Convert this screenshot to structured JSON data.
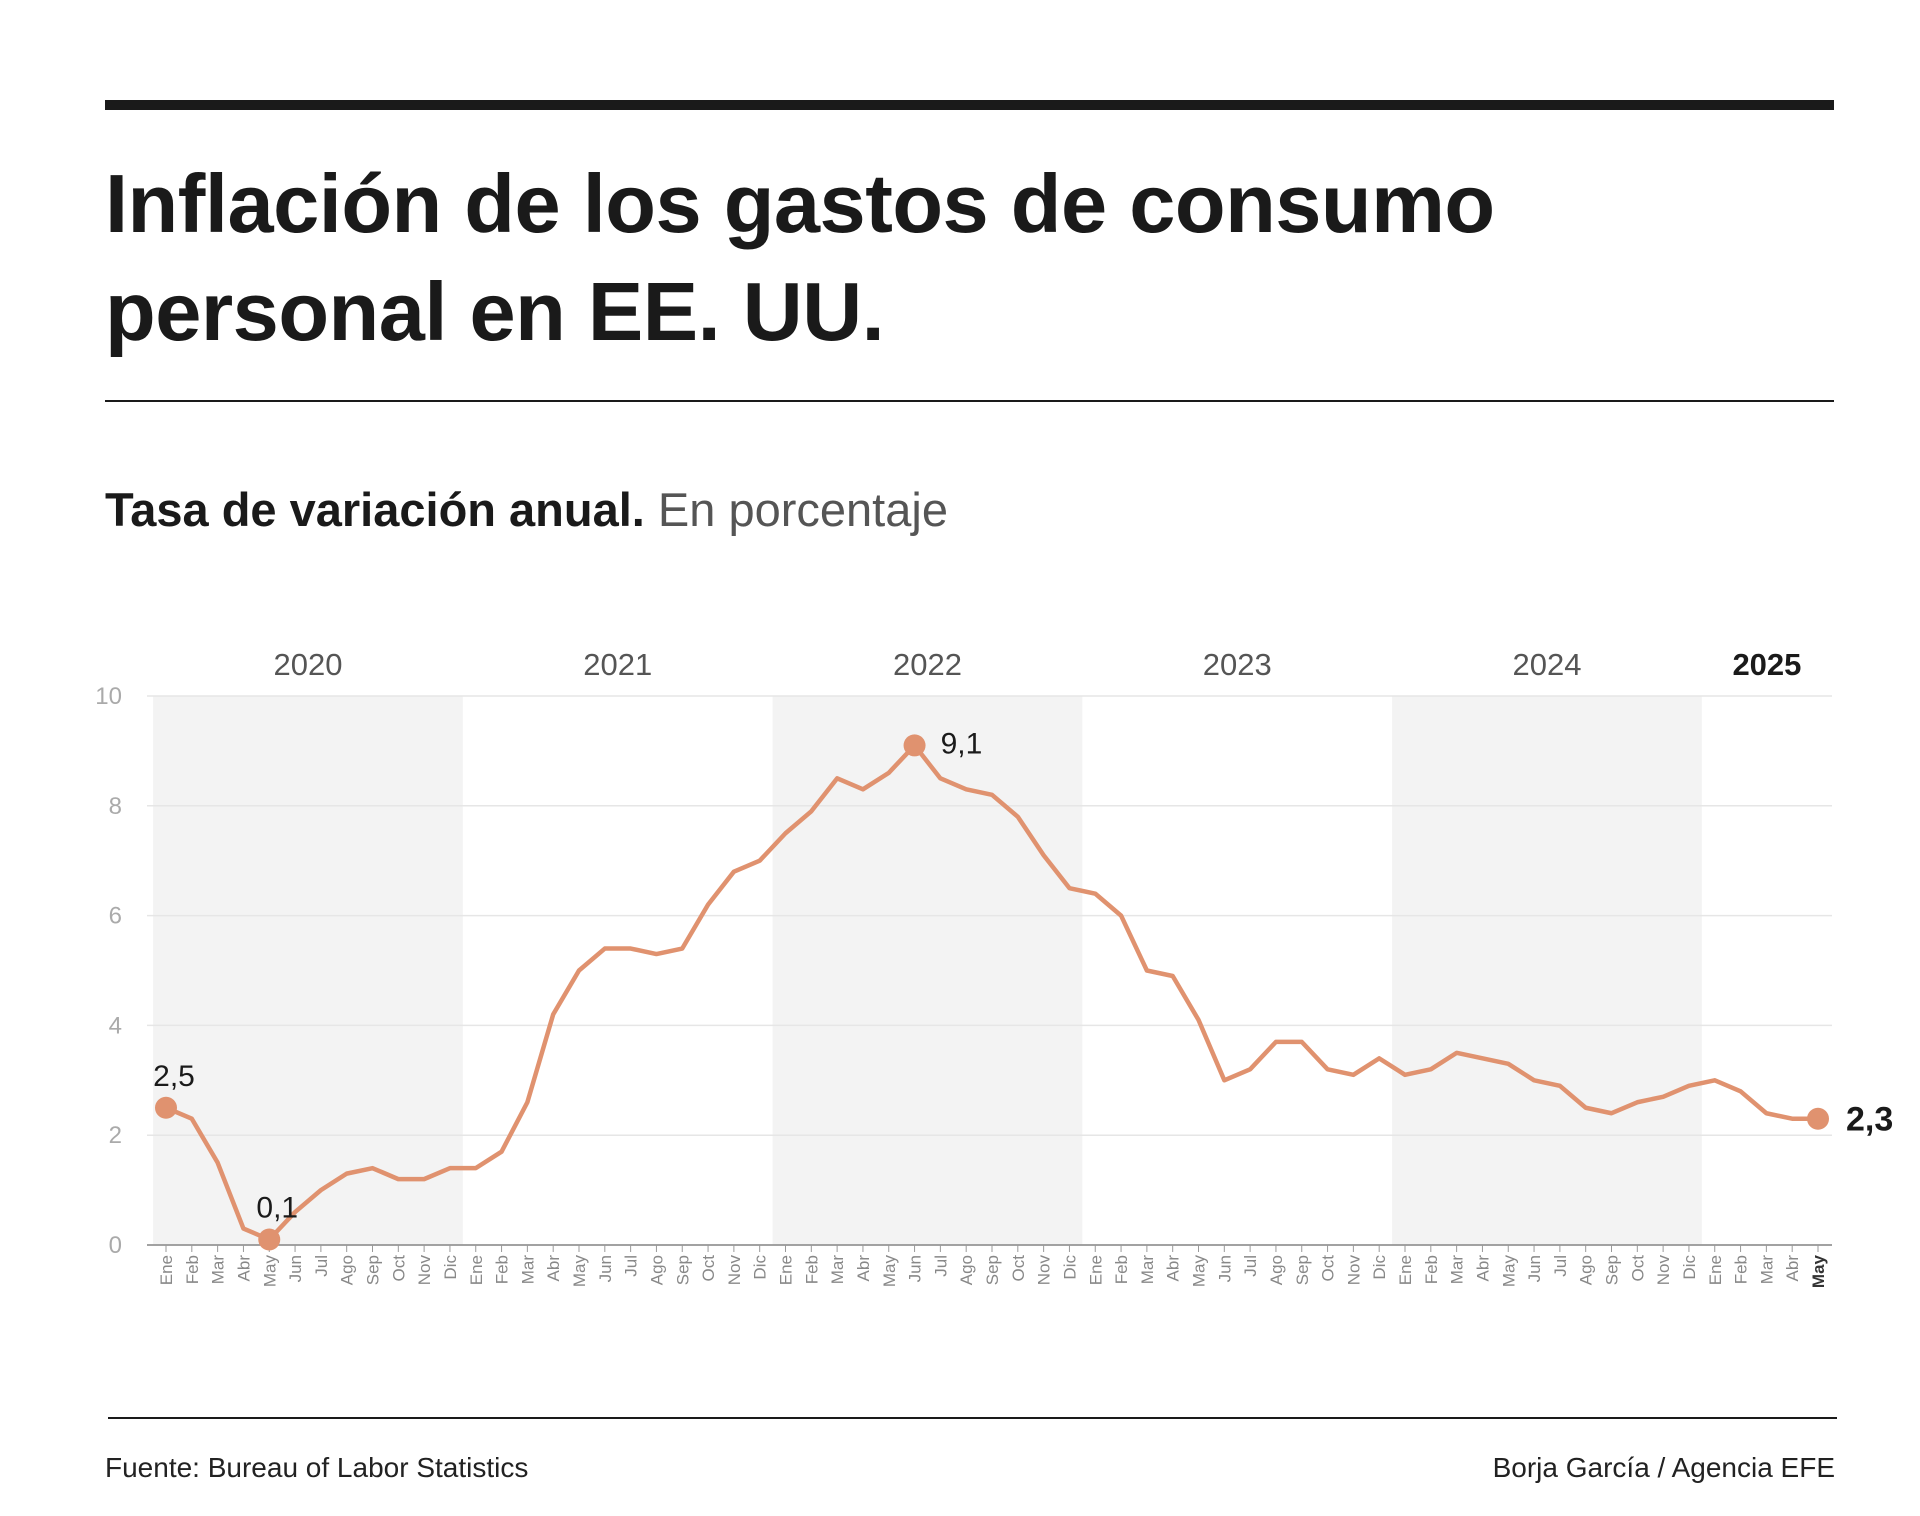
{
  "chart_data": {
    "type": "line",
    "title": "Inflación de los gastos de consumo personal en EE. UU.",
    "subtitle": "Tasa de variación anual.",
    "y_label": "En porcentaje",
    "source": "Fuente: Bureau of Labor Statistics",
    "credit": "Borja García / Agencia EFE",
    "years": [
      "2020",
      "2021",
      "2022",
      "2023",
      "2024",
      "2025"
    ],
    "categories": [
      "Ene",
      "Feb",
      "Mar",
      "Abr",
      "May",
      "Jun",
      "Jul",
      "Ago",
      "Sep",
      "Oct",
      "Nov",
      "Dic",
      "Ene",
      "Feb",
      "Mar",
      "Abr",
      "May",
      "Jun",
      "Jul",
      "Ago",
      "Sep",
      "Oct",
      "Nov",
      "Dic",
      "Ene",
      "Feb",
      "Mar",
      "Abr",
      "May",
      "Jun",
      "Jul",
      "Ago",
      "Sep",
      "Oct",
      "Nov",
      "Dic",
      "Ene",
      "Feb",
      "Mar",
      "Abr",
      "May",
      "Jun",
      "Jul",
      "Ago",
      "Sep",
      "Oct",
      "Nov",
      "Dic",
      "Ene",
      "Feb",
      "Mar",
      "Abr",
      "May",
      "Jun",
      "Jul",
      "Ago",
      "Sep",
      "Oct",
      "Nov",
      "Dic",
      "Ene",
      "Feb",
      "Mar",
      "Abr",
      "May"
    ],
    "series": [
      {
        "name": "Inflación",
        "color": "#e0926f",
        "values": [
          2.5,
          2.3,
          1.5,
          0.3,
          0.1,
          0.6,
          1.0,
          1.3,
          1.4,
          1.2,
          1.2,
          1.4,
          1.4,
          1.7,
          2.6,
          4.2,
          5.0,
          5.4,
          5.4,
          5.3,
          5.4,
          6.2,
          6.8,
          7.0,
          7.5,
          7.9,
          8.5,
          8.3,
          8.6,
          9.1,
          8.5,
          8.3,
          8.2,
          7.8,
          7.1,
          6.5,
          6.4,
          6.0,
          5.0,
          4.9,
          4.1,
          3.0,
          3.2,
          3.7,
          3.7,
          3.2,
          3.1,
          3.4,
          3.1,
          3.2,
          3.5,
          3.4,
          3.3,
          3.0,
          2.9,
          2.5,
          2.4,
          2.6,
          2.7,
          2.9,
          3.0,
          2.8,
          2.4,
          2.3,
          2.3
        ],
        "value_labels": [
          "2,5",
          null,
          null,
          null,
          "0,1",
          null,
          null,
          null,
          null,
          null,
          null,
          null,
          null,
          null,
          null,
          null,
          null,
          null,
          null,
          null,
          null,
          null,
          null,
          null,
          null,
          null,
          null,
          null,
          null,
          "9,1",
          null,
          null,
          null,
          null,
          null,
          null,
          null,
          null,
          null,
          null,
          null,
          null,
          null,
          null,
          null,
          null,
          null,
          null,
          null,
          null,
          null,
          null,
          null,
          null,
          null,
          null,
          null,
          null,
          null,
          null,
          null,
          null,
          null,
          null,
          "2,3"
        ]
      }
    ],
    "ylim": [
      0,
      10
    ],
    "yticks": [
      0,
      2,
      4,
      6,
      8,
      10
    ],
    "grid": true
  }
}
